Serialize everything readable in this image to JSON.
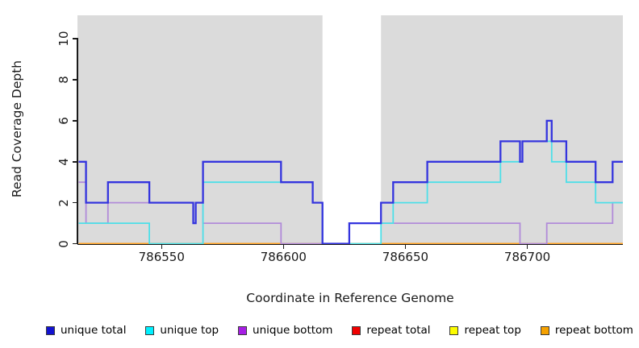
{
  "figure": {
    "background": "#ffffff",
    "panel_background": "#dbdbdb",
    "axis_color": "#1a1a1a"
  },
  "chart_data": {
    "type": "line",
    "subtype": "step-coverage-plot",
    "title": "",
    "xlabel": "Coordinate in Reference Genome",
    "ylabel": "Read Coverage Depth",
    "xlim": [
      786515.5,
      786739.2
    ],
    "ylim": [
      0,
      11.15
    ],
    "x_ticks": [
      786550,
      786600,
      786650,
      786700
    ],
    "y_ticks": [
      0,
      2,
      4,
      6,
      8,
      10
    ],
    "grid": false,
    "legend_position": "bottom",
    "mask_region": {
      "x_start": 786616,
      "x_end": 786640,
      "color": "#ffffff"
    },
    "draw_order": [
      "repeat total",
      "repeat top",
      "repeat bottom",
      "unique bottom",
      "unique top",
      "unique total"
    ],
    "series": [
      {
        "name": "unique total",
        "color": "#3434de",
        "swatch_color": "#1212d0",
        "line_width": 2.3,
        "steps": [
          [
            786516,
            4
          ],
          [
            786519,
            2
          ],
          [
            786528,
            3
          ],
          [
            786545,
            2
          ],
          [
            786563,
            1
          ],
          [
            786564,
            2
          ],
          [
            786567,
            4
          ],
          [
            786599,
            3
          ],
          [
            786612,
            2
          ],
          [
            786616,
            0
          ],
          [
            786627,
            1
          ],
          [
            786640,
            2
          ],
          [
            786645,
            3
          ],
          [
            786659,
            4
          ],
          [
            786689,
            5
          ],
          [
            786697,
            4
          ],
          [
            786698,
            5
          ],
          [
            786708,
            6
          ],
          [
            786710,
            5
          ],
          [
            786716,
            4
          ],
          [
            786728,
            3
          ],
          [
            786735,
            4
          ]
        ]
      },
      {
        "name": "unique top",
        "color": "#4ddfe8",
        "swatch_color": "#00f0ff",
        "line_width": 1.8,
        "steps": [
          [
            786516,
            1
          ],
          [
            786545,
            0
          ],
          [
            786567,
            3
          ],
          [
            786612,
            2
          ],
          [
            786616,
            0
          ],
          [
            786640,
            1
          ],
          [
            786645,
            2
          ],
          [
            786659,
            3
          ],
          [
            786689,
            4
          ],
          [
            786698,
            5
          ],
          [
            786710,
            4
          ],
          [
            786716,
            3
          ],
          [
            786728,
            2
          ]
        ]
      },
      {
        "name": "unique bottom",
        "color": "#b18bd9",
        "swatch_color": "#a61ee4",
        "line_width": 1.8,
        "steps": [
          [
            786516,
            3
          ],
          [
            786519,
            1
          ],
          [
            786528,
            2
          ],
          [
            786563,
            1
          ],
          [
            786564,
            2
          ],
          [
            786567,
            1
          ],
          [
            786599,
            0
          ],
          [
            786627,
            1
          ],
          [
            786697,
            0
          ],
          [
            786708,
            1
          ],
          [
            786735,
            2
          ]
        ]
      },
      {
        "name": "repeat total",
        "color": "#f00000",
        "swatch_color": "#f00000",
        "line_width": 1.5,
        "steps": [
          [
            786516,
            0
          ]
        ]
      },
      {
        "name": "repeat top",
        "color": "#fcfc00",
        "swatch_color": "#fcfc00",
        "line_width": 1.5,
        "steps": [
          [
            786516,
            0
          ]
        ]
      },
      {
        "name": "repeat bottom",
        "color": "#ffa223",
        "swatch_color": "#f5a100",
        "line_width": 2.0,
        "steps": [
          [
            786516,
            0
          ]
        ]
      }
    ]
  }
}
